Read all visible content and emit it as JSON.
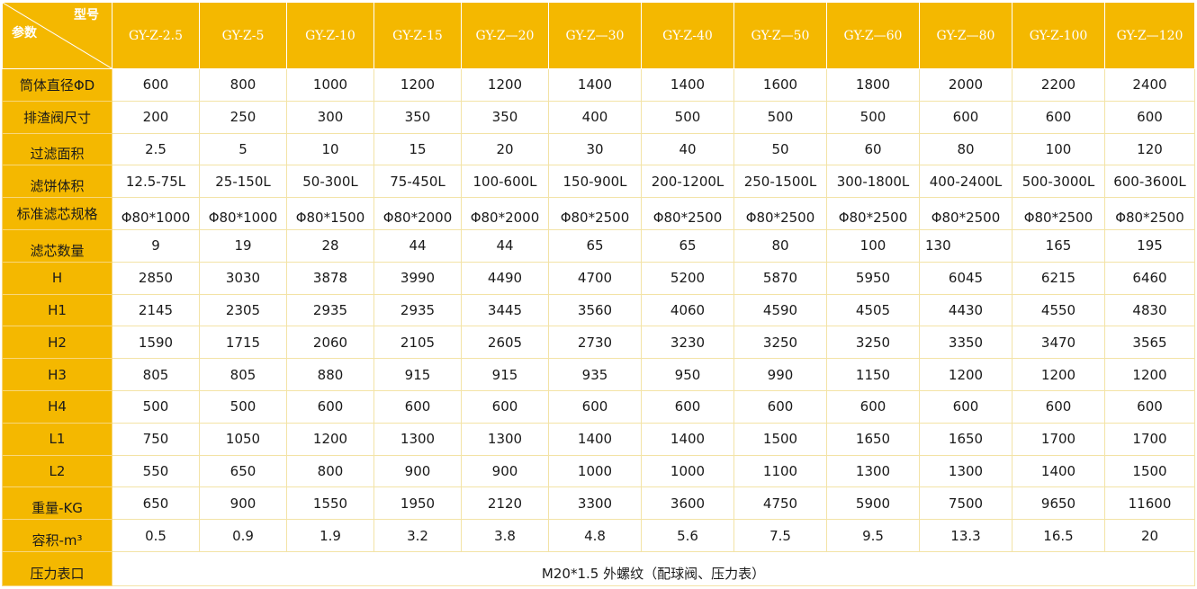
{
  "header": {
    "corner_top": "型号",
    "corner_bottom": "参数",
    "models": [
      "GY-Z-2.5",
      "GY-Z-5",
      "GY-Z-10",
      "GY-Z-15",
      "GY-Z—20",
      "GY-Z—30",
      "GY-Z-40",
      "GY-Z—50",
      "GY-Z—60",
      "GY-Z—80",
      "GY-Z-100",
      "GY-Z—120"
    ]
  },
  "rows": [
    {
      "label": "筒体直径ΦD",
      "values": [
        "600",
        "800",
        "1000",
        "1200",
        "1200",
        "1400",
        "1400",
        "1600",
        "1800",
        "2000",
        "2200",
        "2400"
      ]
    },
    {
      "label": "排渣阀尺寸",
      "values": [
        "200",
        "250",
        "300",
        "350",
        "350",
        "400",
        "500",
        "500",
        "500",
        "600",
        "600",
        "600"
      ]
    },
    {
      "label": "过滤面积",
      "values": [
        "2.5",
        "5",
        "10",
        "15",
        "20",
        "30",
        "40",
        "50",
        "60",
        "80",
        "100",
        "120"
      ]
    },
    {
      "label": "滤饼体积",
      "values": [
        "12.5-75L",
        "25-150L",
        "50-300L",
        "75-450L",
        "100-600L",
        "150-900L",
        "200-1200L",
        "250-1500L",
        "300-1800L",
        "400-2400L",
        "500-3000L",
        "600-3600L"
      ]
    },
    {
      "label": "标准滤芯规格",
      "values": [
        "Φ80*1000",
        "Φ80*1000",
        "Φ80*1500",
        "Φ80*2000",
        "Φ80*2000",
        "Φ80*2500",
        "Φ80*2500",
        "Φ80*2500",
        "Φ80*2500",
        "Φ80*2500",
        "Φ80*2500",
        "Φ80*2500"
      ]
    },
    {
      "label": "滤芯数量",
      "values": [
        "9",
        "19",
        "28",
        "44",
        "44",
        "65",
        "65",
        "80",
        "100",
        "130",
        "165",
        "195"
      ]
    },
    {
      "label": "H",
      "values": [
        "2850",
        "3030",
        "3878",
        "3990",
        "4490",
        "4700",
        "5200",
        "5870",
        "5950",
        "6045",
        "6215",
        "6460"
      ]
    },
    {
      "label": "H1",
      "values": [
        "2145",
        "2305",
        "2935",
        "2935",
        "3445",
        "3560",
        "4060",
        "4590",
        "4505",
        "4430",
        "4550",
        "4830"
      ]
    },
    {
      "label": "H2",
      "values": [
        "1590",
        "1715",
        "2060",
        "2105",
        "2605",
        "2730",
        "3230",
        "3250",
        "3250",
        "3350",
        "3470",
        "3565"
      ]
    },
    {
      "label": "H3",
      "values": [
        "805",
        "805",
        "880",
        "915",
        "915",
        "935",
        "950",
        "990",
        "1150",
        "1200",
        "1200",
        "1200"
      ]
    },
    {
      "label": "H4",
      "values": [
        "500",
        "500",
        "600",
        "600",
        "600",
        "600",
        "600",
        "600",
        "600",
        "600",
        "600",
        "600"
      ]
    },
    {
      "label": "L1",
      "values": [
        "750",
        "1050",
        "1200",
        "1300",
        "1300",
        "1400",
        "1400",
        "1500",
        "1650",
        "1650",
        "1700",
        "1700"
      ]
    },
    {
      "label": "L2",
      "values": [
        "550",
        "650",
        "800",
        "900",
        "900",
        "1000",
        "1000",
        "1100",
        "1300",
        "1300",
        "1400",
        "1500"
      ]
    },
    {
      "label": "重量-KG",
      "values": [
        "650",
        "900",
        "1550",
        "1950",
        "2120",
        "3300",
        "3600",
        "4750",
        "5900",
        "7500",
        "9650",
        "11600"
      ]
    },
    {
      "label": "容积-m³",
      "values": [
        "0.5",
        "0.9",
        "1.9",
        "3.2",
        "3.8",
        "4.8",
        "5.6",
        "7.5",
        "9.5",
        "13.3",
        "16.5",
        "20"
      ]
    }
  ],
  "footer": {
    "label": "压力表口",
    "value": "M20*1.5 外螺纹（配球阀、压力表）"
  },
  "colors": {
    "header_bg": "#f4b800",
    "grid_line": "#f3e3a6"
  }
}
